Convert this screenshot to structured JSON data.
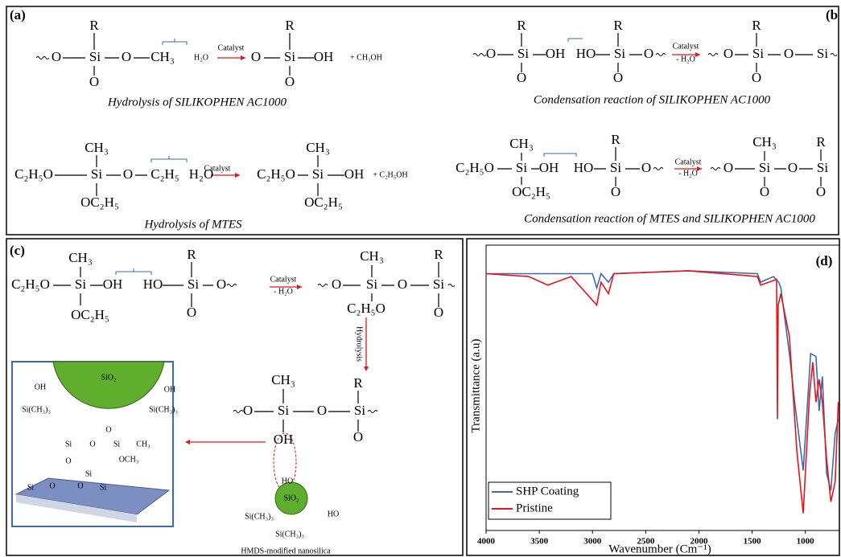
{
  "panel_a": {
    "label": "(a)",
    "hydrolysis_ac1000": {
      "texts": [
        "O",
        "R",
        "Si",
        "O",
        "O",
        "CH₃",
        "H₂O",
        "Catalyst",
        "O",
        "R",
        "Si",
        "O",
        "OH",
        "+ CH₃OH"
      ],
      "caption": "Hydrolysis of SILIKOPHEN AC1000"
    },
    "hydrolysis_mtes": {
      "texts": [
        "C₂H₅O",
        "CH₃",
        "Si",
        "OC₂H₅",
        "O",
        "C₂H₅",
        "H₂O",
        "Catalyst",
        "C₂H₅O",
        "CH₃",
        "Si",
        "OC₂H₅",
        "OH",
        "+ C₂H₅OH"
      ],
      "caption": "Hydrolysis of MTES"
    }
  },
  "panel_b": {
    "label": "(b",
    "condensation_ac1000": {
      "texts": [
        "O",
        "R",
        "Si",
        "O",
        "OH",
        "HO",
        "R",
        "Si",
        "O",
        "O",
        "Catalyst",
        "- H₂O",
        "O",
        "R",
        "Si",
        "O",
        "O",
        "Si"
      ],
      "caption": "Condensation reaction of SILIKOPHEN AC1000"
    },
    "condensation_mtes_ac1000": {
      "texts": [
        "C₂H₅O",
        "CH₃",
        "Si",
        "OC₂H₅",
        "OH",
        "HO",
        "R",
        "Si",
        "O",
        "O",
        "Catalyst",
        "- H₂O",
        "O",
        "CH₃",
        "Si",
        "O",
        "O",
        "R",
        "Si",
        "O"
      ],
      "caption": "Condensation reaction of MTES and SILIKOPHEN AC1000"
    }
  },
  "panel_c": {
    "label": "(c)",
    "condensation": {
      "texts": [
        "C₂H₅O",
        "CH₃",
        "Si",
        "OC₂H₅",
        "OH",
        "HO",
        "R",
        "Si",
        "O",
        "O",
        "Catalyst",
        "- H₂O",
        "O",
        "CH₃",
        "Si",
        "C₂H₅O",
        "O",
        "R",
        "Si",
        "O",
        "Hydrolysis"
      ]
    },
    "attachment": {
      "texts": [
        "CH₃",
        "O",
        "Si",
        "O",
        "R",
        "Si",
        "O",
        "OH",
        "HO",
        "SiO₂",
        "HO",
        "Si(CH₃)₃",
        "Si(CH₃)₃",
        "HMDS-modified nanosilica"
      ]
    },
    "inset": {
      "texts": [
        "SiO₂",
        "OH",
        "OH",
        "Si(CH₃)₃",
        "Si(CH₃)₃",
        "O",
        "Si",
        "O",
        "Si",
        "CH₃",
        "O",
        "OCH₃",
        "Si",
        "Si",
        "O",
        "O",
        "Si"
      ]
    }
  },
  "chart_data": {
    "type": "line",
    "label": "(d)",
    "x_label": "Wavenumber (Cm⁻¹)",
    "y_label": "Transmittance (a.u)",
    "xlim": [
      4000,
      680
    ],
    "ylim": [
      0,
      100
    ],
    "xticks": [
      4000,
      3500,
      3000,
      2500,
      2000,
      1500,
      1000
    ],
    "legend": "lower left",
    "series": [
      {
        "name": "SHP Coating",
        "color": "#3a6bb0",
        "x": [
          4000,
          3000,
          2960,
          2920,
          2850,
          2800,
          2100,
          1450,
          1420,
          1300,
          1250,
          1230,
          1150,
          1100,
          1020,
          950,
          900,
          870,
          840,
          800,
          760,
          720,
          690
        ],
        "values": [
          90,
          90,
          85,
          90,
          87,
          90,
          91,
          90,
          87,
          89,
          87,
          85,
          62,
          45,
          21,
          62,
          61,
          42,
          54,
          20,
          14,
          34,
          39
        ]
      },
      {
        "name": "Pristine",
        "color": "#e8141c",
        "x": [
          4000,
          3600,
          3420,
          3200,
          2960,
          2920,
          2850,
          2800,
          2100,
          1450,
          1420,
          1270,
          1262,
          1255,
          1230,
          1150,
          1080,
          1020,
          960,
          930,
          900,
          870,
          840,
          800,
          760,
          720,
          690
        ],
        "values": [
          90,
          89,
          86,
          89,
          79,
          87,
          83,
          90,
          91,
          89,
          86,
          88,
          39,
          79,
          83,
          68,
          28,
          6,
          48,
          59,
          45,
          53,
          45,
          25,
          10,
          17,
          45
        ]
      }
    ]
  }
}
